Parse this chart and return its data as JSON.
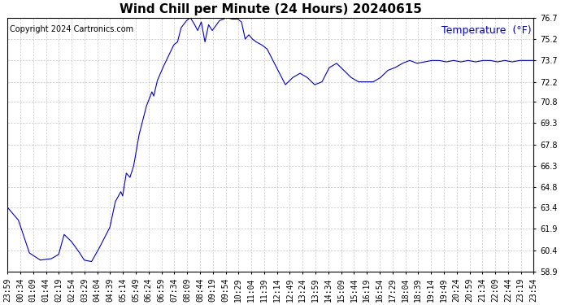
{
  "title": "Wind Chill per Minute (24 Hours) 20240615",
  "ylabel": "Temperature  (°F)",
  "copyright": "Copyright 2024 Cartronics.com",
  "line_color": "#0000cc",
  "bg_color": "#ffffff",
  "grid_color": "#bbbbbb",
  "title_color": "#000000",
  "ylabel_color": "#0000cc",
  "copyright_color": "#000000",
  "ylim": [
    58.9,
    76.7
  ],
  "yticks": [
    58.9,
    60.4,
    61.9,
    63.4,
    64.8,
    66.3,
    67.8,
    69.3,
    70.8,
    72.2,
    73.7,
    75.2,
    76.7
  ],
  "xtick_labels": [
    "23:59",
    "00:34",
    "01:09",
    "01:44",
    "02:19",
    "02:54",
    "03:29",
    "04:04",
    "04:39",
    "05:14",
    "05:49",
    "06:24",
    "06:59",
    "07:34",
    "08:09",
    "08:44",
    "09:19",
    "09:54",
    "10:29",
    "11:04",
    "11:39",
    "12:14",
    "12:49",
    "13:24",
    "13:59",
    "14:34",
    "15:09",
    "15:44",
    "16:19",
    "16:54",
    "17:29",
    "18:04",
    "18:39",
    "19:14",
    "19:49",
    "20:24",
    "20:59",
    "21:34",
    "22:09",
    "22:44",
    "23:19",
    "23:54"
  ],
  "title_fontsize": 11,
  "tick_fontsize": 7,
  "ylabel_fontsize": 9,
  "copyright_fontsize": 7,
  "curve_pts_t": [
    0,
    30,
    60,
    90,
    120,
    140,
    155,
    175,
    195,
    210,
    230,
    250,
    280,
    295,
    310,
    315,
    325,
    335,
    345,
    360,
    380,
    395,
    400,
    410,
    425,
    440,
    455,
    465,
    475,
    490,
    500,
    510,
    520,
    530,
    540,
    550,
    560,
    580,
    600,
    615,
    630,
    640,
    650,
    660,
    670,
    680,
    695,
    710,
    720,
    740,
    760,
    780,
    800,
    820,
    840,
    860,
    880,
    900,
    920,
    940,
    960,
    980,
    1000,
    1020,
    1040,
    1060,
    1080,
    1100,
    1120,
    1140,
    1160,
    1180,
    1200,
    1220,
    1240,
    1260,
    1280,
    1300,
    1320,
    1340,
    1360,
    1380,
    1400,
    1420,
    1439
  ],
  "curve_pts_y": [
    63.4,
    62.5,
    60.2,
    59.7,
    59.8,
    60.1,
    61.5,
    61.0,
    60.3,
    59.7,
    59.6,
    60.5,
    62.0,
    63.8,
    64.5,
    64.2,
    65.8,
    65.5,
    66.3,
    68.5,
    70.5,
    71.5,
    71.2,
    72.3,
    73.2,
    74.0,
    74.8,
    75.0,
    76.0,
    76.5,
    76.7,
    76.3,
    75.8,
    76.4,
    75.0,
    76.2,
    75.8,
    76.5,
    76.7,
    76.6,
    76.6,
    76.4,
    75.2,
    75.5,
    75.2,
    75.0,
    74.8,
    74.5,
    74.0,
    73.0,
    72.0,
    72.5,
    72.8,
    72.5,
    72.0,
    72.2,
    73.2,
    73.5,
    73.0,
    72.5,
    72.2,
    72.2,
    72.2,
    72.5,
    73.0,
    73.2,
    73.5,
    73.7,
    73.5,
    73.6,
    73.7,
    73.7,
    73.6,
    73.7,
    73.6,
    73.7,
    73.6,
    73.7,
    73.7,
    73.6,
    73.7,
    73.6,
    73.7,
    73.7,
    73.7
  ]
}
